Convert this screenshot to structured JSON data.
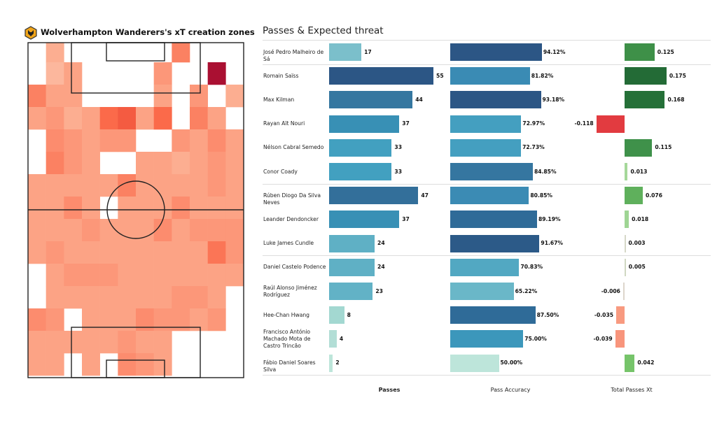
{
  "heatmap": {
    "title": "Wolverhampton Wanderers's xT creation zones",
    "logo_icon": "wolves-badge",
    "colormap": "Reds",
    "grid_rows": 15,
    "grid_cols": 12,
    "intensity": [
      [
        0,
        0.3,
        0,
        0,
        0,
        0,
        0,
        0,
        0.5,
        0,
        0,
        0
      ],
      [
        0,
        0.25,
        0.35,
        0,
        0,
        0,
        0,
        0.4,
        0,
        0,
        1.0,
        0
      ],
      [
        0.5,
        0.35,
        0.35,
        0,
        0,
        0,
        0,
        0.35,
        0,
        0.4,
        0,
        0.3
      ],
      [
        0.35,
        0.4,
        0.3,
        0.35,
        0.6,
        0.65,
        0.35,
        0.6,
        0,
        0.5,
        0.35,
        0
      ],
      [
        0,
        0.45,
        0.4,
        0.35,
        0.4,
        0.4,
        0,
        0,
        0.4,
        0.35,
        0.45,
        0.35
      ],
      [
        0,
        0.5,
        0.4,
        0.35,
        0,
        0,
        0.35,
        0.35,
        0.3,
        0.35,
        0.4,
        0.35
      ],
      [
        0.35,
        0.35,
        0.35,
        0.35,
        0.35,
        0.5,
        0.35,
        0.35,
        0.35,
        0.35,
        0.4,
        0.35
      ],
      [
        0.35,
        0.35,
        0.45,
        0.35,
        0,
        0.35,
        0.35,
        0.35,
        0.45,
        0.35,
        0.35,
        0.35
      ],
      [
        0.35,
        0.35,
        0.35,
        0.4,
        0.35,
        0.35,
        0.35,
        0.45,
        0.35,
        0.4,
        0.4,
        0.4
      ],
      [
        0.35,
        0.4,
        0.35,
        0.35,
        0.35,
        0.35,
        0.35,
        0.35,
        0.35,
        0.35,
        0.55,
        0.4
      ],
      [
        0,
        0.35,
        0.4,
        0.4,
        0.4,
        0.35,
        0.35,
        0.35,
        0.35,
        0.35,
        0.35,
        0.35
      ],
      [
        0,
        0.35,
        0.35,
        0.35,
        0.35,
        0.35,
        0.35,
        0.35,
        0.4,
        0.4,
        0.35,
        0
      ],
      [
        0.45,
        0.4,
        0,
        0.35,
        0.35,
        0.35,
        0.45,
        0.4,
        0.4,
        0.35,
        0.4,
        0
      ],
      [
        0.35,
        0.35,
        0.35,
        0.35,
        0.35,
        0.4,
        0.35,
        0.35,
        0,
        0,
        0,
        0
      ],
      [
        0.35,
        0.35,
        0,
        0.35,
        0,
        0.45,
        0.4,
        0.35,
        0,
        0,
        0,
        0
      ]
    ]
  },
  "chart_data": {
    "type": "bar",
    "orientation": "horizontal",
    "title": "Passes & Expected threat",
    "xlabels": [
      "Passes",
      "Pass Accuracy",
      "Total Passes Xt"
    ],
    "group_dividers_after": [
      0,
      5,
      8
    ],
    "rows": [
      {
        "name": "José Pedro Malheiro de Sá",
        "passes": 17,
        "passes_label": "17",
        "acc": 94.12,
        "acc_label": "94.12%",
        "xt": 0.125,
        "xt_label": "0.125",
        "pc": "#7bbfcb",
        "ac": "#2c5685",
        "xc": "#3e9048"
      },
      {
        "name": "Romain Saïss",
        "passes": 55,
        "passes_label": "55",
        "acc": 81.82,
        "acc_label": "81.82%",
        "xt": 0.175,
        "xt_label": "0.175",
        "pc": "#2c5685",
        "ac": "#3a8bb4",
        "xc": "#236b36"
      },
      {
        "name": "Max Kilman",
        "passes": 44,
        "passes_label": "44",
        "acc": 93.18,
        "acc_label": "93.18%",
        "xt": 0.168,
        "xt_label": "0.168",
        "pc": "#3577a0",
        "ac": "#2c5685",
        "xc": "#257038"
      },
      {
        "name": "Rayan Aït Nouri",
        "passes": 37,
        "passes_label": "37",
        "acc": 72.97,
        "acc_label": "72.97%",
        "xt": -0.118,
        "xt_label": "-0.118",
        "pc": "#3890b5",
        "ac": "#449fc0",
        "xc": "#e23b40"
      },
      {
        "name": "Nélson Cabral Semedo",
        "passes": 33,
        "passes_label": "33",
        "acc": 72.73,
        "acc_label": "72.73%",
        "xt": 0.115,
        "xt_label": "0.115",
        "pc": "#42a0c0",
        "ac": "#449fc0",
        "xc": "#3f914a"
      },
      {
        "name": "Conor  Coady",
        "passes": 33,
        "passes_label": "33",
        "acc": 84.85,
        "acc_label": "84.85%",
        "xt": 0.013,
        "xt_label": "0.013",
        "pc": "#42a0c0",
        "ac": "#3576a0",
        "xc": "#a5d89a"
      },
      {
        "name": "Rúben Diogo Da Silva Neves",
        "passes": 47,
        "passes_label": "47",
        "acc": 80.85,
        "acc_label": "80.85%",
        "xt": 0.076,
        "xt_label": "0.076",
        "pc": "#336f9a",
        "ac": "#3b8bb4",
        "xc": "#5fb05c"
      },
      {
        "name": "Leander Dendoncker",
        "passes": 37,
        "passes_label": "37",
        "acc": 89.19,
        "acc_label": "89.19%",
        "xt": 0.018,
        "xt_label": "0.018",
        "pc": "#3890b5",
        "ac": "#2f6b98",
        "xc": "#9fd594"
      },
      {
        "name": "Luke James Cundle",
        "passes": 24,
        "passes_label": "24",
        "acc": 91.67,
        "acc_label": "91.67%",
        "xt": 0.003,
        "xt_label": "0.003",
        "pc": "#5fb0c5",
        "ac": "#2c5a88",
        "xc": "#d6d8c8"
      },
      {
        "name": "Daniel Castelo Podence",
        "passes": 24,
        "passes_label": "24",
        "acc": 70.83,
        "acc_label": "70.83%",
        "xt": 0.005,
        "xt_label": "0.005",
        "pc": "#5fb0c5",
        "ac": "#52a8c2",
        "xc": "#d0d8c2"
      },
      {
        "name": "Raúl Alonso Jiménez Rodríguez",
        "passes": 23,
        "passes_label": "23",
        "acc": 65.22,
        "acc_label": "65.22%",
        "xt": -0.006,
        "xt_label": "-0.006",
        "pc": "#62b2c6",
        "ac": "#6ab7c8",
        "xc": "#ddd6cc"
      },
      {
        "name": "Hee-Chan Hwang",
        "passes": 8,
        "passes_label": "8",
        "acc": 87.5,
        "acc_label": "87.50%",
        "xt": -0.035,
        "xt_label": "-0.035",
        "pc": "#a3d8d1",
        "ac": "#2f6b98",
        "xc": "#f89a80"
      },
      {
        "name": "Francisco António Machado Mota de Castro Trincão",
        "passes": 4,
        "passes_label": "4",
        "acc": 75.0,
        "acc_label": "75.00%",
        "xt": -0.039,
        "xt_label": "-0.039",
        "pc": "#b2ded6",
        "ac": "#3c97bb",
        "xc": "#f8957c"
      },
      {
        "name": "Fábio Daniel Soares Silva",
        "passes": 2,
        "passes_label": "2",
        "acc": 50.0,
        "acc_label": "50.00%",
        "xt": 0.042,
        "xt_label": "0.042",
        "pc": "#bde5da",
        "ac": "#bde5da",
        "xc": "#76c46a"
      }
    ]
  }
}
